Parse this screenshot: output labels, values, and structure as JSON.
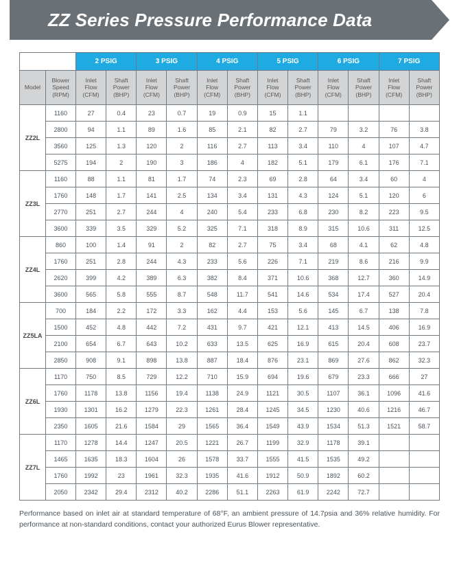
{
  "title": "ZZ Series Pressure Performance Data",
  "colors": {
    "banner_bg": "#6a7176",
    "psig_header_bg": "#1fabe2",
    "sub_header_bg": "#d2d4d6",
    "border": "#6f7a82",
    "text": "#4a5258"
  },
  "psig_columns": [
    "2 PSIG",
    "3 PSIG",
    "4 PSIG",
    "5 PSIG",
    "6 PSIG",
    "7 PSIG"
  ],
  "subheaders": {
    "model": "Model",
    "rpm": "Blower\nSpeed\n(RPM)",
    "flow": "Inlet\nFlow\n(CFM)",
    "power": "Shaft\nPower\n(BHP)"
  },
  "models": [
    {
      "name": "ZZ2L",
      "rows": [
        {
          "rpm": "1160",
          "cells": [
            "27",
            "0.4",
            "23",
            "0.7",
            "19",
            "0.9",
            "15",
            "1.1",
            "",
            "",
            "",
            ""
          ]
        },
        {
          "rpm": "2800",
          "cells": [
            "94",
            "1.1",
            "89",
            "1.6",
            "85",
            "2.1",
            "82",
            "2.7",
            "79",
            "3.2",
            "76",
            "3.8"
          ]
        },
        {
          "rpm": "3560",
          "cells": [
            "125",
            "1.3",
            "120",
            "2",
            "116",
            "2.7",
            "113",
            "3.4",
            "110",
            "4",
            "107",
            "4.7"
          ]
        },
        {
          "rpm": "5275",
          "cells": [
            "194",
            "2",
            "190",
            "3",
            "186",
            "4",
            "182",
            "5.1",
            "179",
            "6.1",
            "176",
            "7.1"
          ]
        }
      ]
    },
    {
      "name": "ZZ3L",
      "rows": [
        {
          "rpm": "1160",
          "cells": [
            "88",
            "1.1",
            "81",
            "1.7",
            "74",
            "2.3",
            "69",
            "2.8",
            "64",
            "3.4",
            "60",
            "4"
          ]
        },
        {
          "rpm": "1760",
          "cells": [
            "148",
            "1.7",
            "141",
            "2.5",
            "134",
            "3.4",
            "131",
            "4.3",
            "124",
            "5.1",
            "120",
            "6"
          ]
        },
        {
          "rpm": "2770",
          "cells": [
            "251",
            "2.7",
            "244",
            "4",
            "240",
            "5.4",
            "233",
            "6.8",
            "230",
            "8.2",
            "223",
            "9.5"
          ]
        },
        {
          "rpm": "3600",
          "cells": [
            "339",
            "3.5",
            "329",
            "5.2",
            "325",
            "7.1",
            "318",
            "8.9",
            "315",
            "10.6",
            "311",
            "12.5"
          ]
        }
      ]
    },
    {
      "name": "ZZ4L",
      "rows": [
        {
          "rpm": "860",
          "cells": [
            "100",
            "1.4",
            "91",
            "2",
            "82",
            "2.7",
            "75",
            "3.4",
            "68",
            "4.1",
            "62",
            "4.8"
          ]
        },
        {
          "rpm": "1760",
          "cells": [
            "251",
            "2.8",
            "244",
            "4.3",
            "233",
            "5.6",
            "226",
            "7.1",
            "219",
            "8.6",
            "216",
            "9.9"
          ]
        },
        {
          "rpm": "2620",
          "cells": [
            "399",
            "4.2",
            "389",
            "6.3",
            "382",
            "8.4",
            "371",
            "10.6",
            "368",
            "12.7",
            "360",
            "14.9"
          ]
        },
        {
          "rpm": "3600",
          "cells": [
            "565",
            "5.8",
            "555",
            "8.7",
            "548",
            "11.7",
            "541",
            "14.6",
            "534",
            "17.4",
            "527",
            "20.4"
          ]
        }
      ]
    },
    {
      "name": "ZZ5LA",
      "rows": [
        {
          "rpm": "700",
          "cells": [
            "184",
            "2.2",
            "172",
            "3.3",
            "162",
            "4.4",
            "153",
            "5.6",
            "145",
            "6.7",
            "138",
            "7.8"
          ]
        },
        {
          "rpm": "1500",
          "cells": [
            "452",
            "4.8",
            "442",
            "7.2",
            "431",
            "9.7",
            "421",
            "12.1",
            "413",
            "14.5",
            "406",
            "16.9"
          ]
        },
        {
          "rpm": "2100",
          "cells": [
            "654",
            "6.7",
            "643",
            "10.2",
            "633",
            "13.5",
            "625",
            "16.9",
            "615",
            "20.4",
            "608",
            "23.7"
          ]
        },
        {
          "rpm": "2850",
          "cells": [
            "908",
            "9.1",
            "898",
            "13.8",
            "887",
            "18.4",
            "876",
            "23.1",
            "869",
            "27.6",
            "862",
            "32.3"
          ]
        }
      ]
    },
    {
      "name": "ZZ6L",
      "rows": [
        {
          "rpm": "1170",
          "cells": [
            "750",
            "8.5",
            "729",
            "12.2",
            "710",
            "15.9",
            "694",
            "19.6",
            "679",
            "23.3",
            "666",
            "27"
          ]
        },
        {
          "rpm": "1760",
          "cells": [
            "1178",
            "13.8",
            "1156",
            "19.4",
            "1138",
            "24.9",
            "1121",
            "30.5",
            "1107",
            "36.1",
            "1096",
            "41.6"
          ]
        },
        {
          "rpm": "1930",
          "cells": [
            "1301",
            "16.2",
            "1279",
            "22.3",
            "1261",
            "28.4",
            "1245",
            "34.5",
            "1230",
            "40.6",
            "1216",
            "46.7"
          ]
        },
        {
          "rpm": "2350",
          "cells": [
            "1605",
            "21.6",
            "1584",
            "29",
            "1565",
            "36.4",
            "1549",
            "43.9",
            "1534",
            "51.3",
            "1521",
            "58.7"
          ]
        }
      ]
    },
    {
      "name": "ZZ7L",
      "rows": [
        {
          "rpm": "1170",
          "cells": [
            "1278",
            "14.4",
            "1247",
            "20.5",
            "1221",
            "26.7",
            "1199",
            "32.9",
            "1178",
            "39.1",
            "",
            ""
          ]
        },
        {
          "rpm": "1465",
          "cells": [
            "1635",
            "18.3",
            "1604",
            "26",
            "1578",
            "33.7",
            "1555",
            "41.5",
            "1535",
            "49.2",
            "",
            ""
          ]
        },
        {
          "rpm": "1760",
          "cells": [
            "1992",
            "23",
            "1961",
            "32.3",
            "1935",
            "41.6",
            "1912",
            "50.9",
            "1892",
            "60.2",
            "",
            ""
          ]
        },
        {
          "rpm": "2050",
          "cells": [
            "2342",
            "29.4",
            "2312",
            "40.2",
            "2286",
            "51.1",
            "2263",
            "61.9",
            "2242",
            "72.7",
            "",
            ""
          ]
        }
      ]
    }
  ],
  "footnote": "Performance based on inlet air at standard temperature of 68°F, an ambient pressure of 14.7psia and 36% relative humidity. For performance at non-standard conditions, contact your authorized Eurus Blower representative."
}
